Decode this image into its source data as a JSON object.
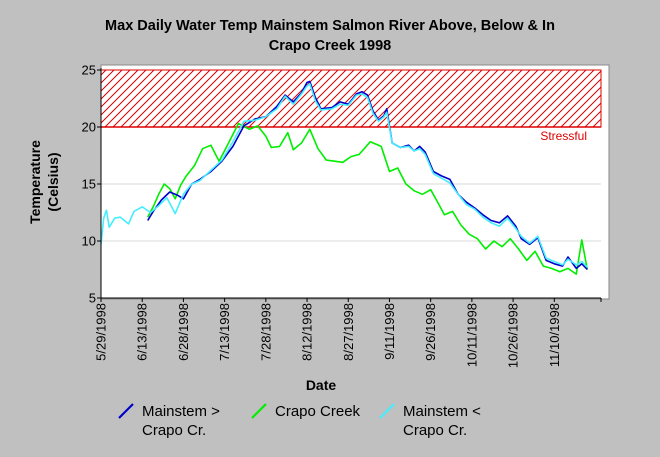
{
  "chart_data": {
    "type": "line",
    "title_lines": [
      "Max Daily Water Temp Mainstem Salmon River Above, Below & In",
      "Crapo Creek 1998"
    ],
    "xlabel": "Date",
    "ylabel_lines": [
      "Temperature",
      "(Celsius)"
    ],
    "x_ticks": [
      "5/29/1998",
      "6/13/1998",
      "6/28/1998",
      "7/13/1998",
      "7/28/1998",
      "8/12/1998",
      "8/27/1998",
      "9/11/1998",
      "9/26/1998",
      "10/11/1998",
      "10/26/1998",
      "11/10/1998"
    ],
    "x_tick_days": [
      0,
      15,
      30,
      45,
      60,
      75,
      90,
      105,
      120,
      135,
      150,
      165
    ],
    "xlim_days": [
      0,
      182
    ],
    "y_ticks": [
      5,
      10,
      15,
      20,
      25
    ],
    "ylim": [
      5,
      25
    ],
    "grid": "horizontal",
    "threshold": {
      "label": "Stressful",
      "from": 20,
      "to": 25,
      "color": "#dd0000"
    },
    "legend_placement": "bottom",
    "series": [
      {
        "name": "Mainstem > Crapo Cr.",
        "legend_lines": [
          "Mainstem >",
          "Crapo Cr."
        ],
        "color": "#0000cc",
        "points": [
          [
            17,
            11.8
          ],
          [
            19,
            12.6
          ],
          [
            22,
            13.6
          ],
          [
            25,
            14.3
          ],
          [
            28,
            14.0
          ],
          [
            30,
            13.7
          ],
          [
            33,
            15.0
          ],
          [
            36,
            15.4
          ],
          [
            40,
            16.1
          ],
          [
            44,
            17.0
          ],
          [
            48,
            18.3
          ],
          [
            52,
            20.1
          ],
          [
            56,
            20.7
          ],
          [
            60,
            20.9
          ],
          [
            64,
            21.8
          ],
          [
            67,
            22.8
          ],
          [
            70,
            22.2
          ],
          [
            73,
            23.0
          ],
          [
            75,
            23.9
          ],
          [
            76,
            24.0
          ],
          [
            78,
            22.6
          ],
          [
            80,
            21.6
          ],
          [
            84,
            21.7
          ],
          [
            87,
            22.2
          ],
          [
            90,
            22.0
          ],
          [
            93,
            22.9
          ],
          [
            95,
            23.1
          ],
          [
            97,
            22.8
          ],
          [
            99,
            21.4
          ],
          [
            101,
            20.6
          ],
          [
            103,
            21.0
          ],
          [
            104,
            21.6
          ],
          [
            106,
            18.6
          ],
          [
            109,
            18.2
          ],
          [
            112,
            18.4
          ],
          [
            114,
            17.9
          ],
          [
            116,
            18.3
          ],
          [
            118,
            17.8
          ],
          [
            121,
            16.1
          ],
          [
            124,
            15.7
          ],
          [
            127,
            15.4
          ],
          [
            130,
            14.1
          ],
          [
            133,
            13.4
          ],
          [
            136,
            12.9
          ],
          [
            139,
            12.3
          ],
          [
            142,
            11.8
          ],
          [
            145,
            11.6
          ],
          [
            148,
            12.2
          ],
          [
            151,
            11.3
          ],
          [
            153,
            10.2
          ],
          [
            156,
            9.7
          ],
          [
            159,
            10.3
          ],
          [
            162,
            8.3
          ],
          [
            165,
            8.0
          ],
          [
            168,
            7.8
          ],
          [
            170,
            8.6
          ],
          [
            173,
            7.6
          ],
          [
            175,
            8.0
          ],
          [
            177,
            7.5
          ]
        ]
      },
      {
        "name": "Crapo Creek",
        "legend_lines": [
          "Crapo Creek"
        ],
        "color": "#00ee00",
        "points": [
          [
            17,
            12.1
          ],
          [
            19,
            13.0
          ],
          [
            21,
            14.1
          ],
          [
            23,
            15.0
          ],
          [
            25,
            14.6
          ],
          [
            27,
            13.7
          ],
          [
            29,
            14.9
          ],
          [
            31,
            15.7
          ],
          [
            34,
            16.6
          ],
          [
            37,
            18.1
          ],
          [
            40,
            18.4
          ],
          [
            43,
            17.0
          ],
          [
            46,
            18.4
          ],
          [
            50,
            20.3
          ],
          [
            54,
            19.8
          ],
          [
            57,
            20.1
          ],
          [
            60,
            19.2
          ],
          [
            62,
            18.2
          ],
          [
            65,
            18.3
          ],
          [
            68,
            19.5
          ],
          [
            70,
            18.0
          ],
          [
            73,
            18.6
          ],
          [
            76,
            19.8
          ],
          [
            79,
            18.1
          ],
          [
            82,
            17.1
          ],
          [
            85,
            17.0
          ],
          [
            88,
            16.9
          ],
          [
            91,
            17.4
          ],
          [
            94,
            17.6
          ],
          [
            98,
            18.7
          ],
          [
            102,
            18.3
          ],
          [
            105,
            16.1
          ],
          [
            108,
            16.4
          ],
          [
            111,
            15.0
          ],
          [
            114,
            14.4
          ],
          [
            117,
            14.1
          ],
          [
            120,
            14.5
          ],
          [
            123,
            13.2
          ],
          [
            125,
            12.3
          ],
          [
            128,
            12.6
          ],
          [
            131,
            11.4
          ],
          [
            134,
            10.6
          ],
          [
            137,
            10.2
          ],
          [
            140,
            9.3
          ],
          [
            143,
            10.0
          ],
          [
            146,
            9.5
          ],
          [
            149,
            10.2
          ],
          [
            152,
            9.3
          ],
          [
            155,
            8.3
          ],
          [
            158,
            9.1
          ],
          [
            161,
            7.8
          ],
          [
            164,
            7.6
          ],
          [
            167,
            7.3
          ],
          [
            170,
            7.6
          ],
          [
            173,
            7.1
          ],
          [
            175,
            10.1
          ],
          [
            177,
            7.5
          ]
        ]
      },
      {
        "name": "Mainstem < Crapo Cr.",
        "legend_lines": [
          "Mainstem <",
          "Crapo Cr."
        ],
        "color": "#44eeff",
        "points": [
          [
            0,
            9.7
          ],
          [
            1,
            12.0
          ],
          [
            2,
            12.7
          ],
          [
            3,
            11.2
          ],
          [
            5,
            12.0
          ],
          [
            7,
            12.1
          ],
          [
            10,
            11.5
          ],
          [
            12,
            12.6
          ],
          [
            15,
            13.0
          ],
          [
            18,
            12.5
          ],
          [
            21,
            13.1
          ],
          [
            24,
            13.8
          ],
          [
            27,
            12.4
          ],
          [
            30,
            14.1
          ],
          [
            33,
            15.0
          ],
          [
            36,
            15.3
          ],
          [
            40,
            16.2
          ],
          [
            44,
            17.1
          ],
          [
            48,
            18.7
          ],
          [
            52,
            20.5
          ],
          [
            56,
            20.6
          ],
          [
            60,
            20.9
          ],
          [
            64,
            21.6
          ],
          [
            67,
            22.7
          ],
          [
            70,
            22.0
          ],
          [
            73,
            22.9
          ],
          [
            75,
            23.6
          ],
          [
            76,
            23.8
          ],
          [
            78,
            22.3
          ],
          [
            80,
            21.5
          ],
          [
            84,
            21.6
          ],
          [
            87,
            22.0
          ],
          [
            90,
            21.9
          ],
          [
            93,
            22.8
          ],
          [
            95,
            22.9
          ],
          [
            97,
            22.6
          ],
          [
            99,
            21.2
          ],
          [
            101,
            20.5
          ],
          [
            103,
            20.9
          ],
          [
            104,
            21.3
          ],
          [
            106,
            18.6
          ],
          [
            109,
            18.2
          ],
          [
            112,
            18.3
          ],
          [
            114,
            17.9
          ],
          [
            116,
            18.1
          ],
          [
            118,
            17.6
          ],
          [
            121,
            15.9
          ],
          [
            124,
            15.5
          ],
          [
            127,
            15.1
          ],
          [
            130,
            14.1
          ],
          [
            133,
            13.2
          ],
          [
            136,
            12.8
          ],
          [
            139,
            12.1
          ],
          [
            142,
            11.6
          ],
          [
            145,
            11.3
          ],
          [
            148,
            12.0
          ],
          [
            151,
            11.1
          ],
          [
            153,
            10.4
          ],
          [
            156,
            9.8
          ],
          [
            159,
            10.4
          ],
          [
            162,
            8.5
          ],
          [
            165,
            8.2
          ],
          [
            168,
            7.9
          ],
          [
            170,
            8.4
          ],
          [
            173,
            7.9
          ],
          [
            175,
            8.2
          ],
          [
            177,
            7.7
          ]
        ]
      }
    ]
  }
}
